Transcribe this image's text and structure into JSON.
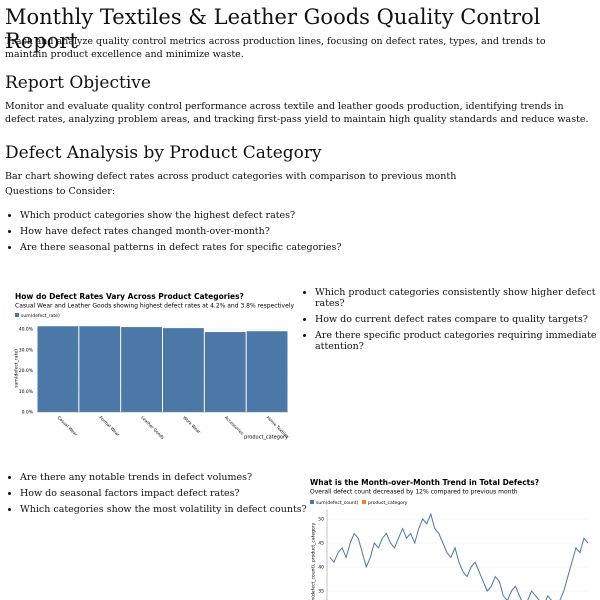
{
  "header": {
    "title": "Monthly Textiles & Leather Goods Quality Control Report",
    "description": "Track and analyze quality control metrics across production lines, focusing on defect rates, types, and trends to maintain product excellence and minimize waste."
  },
  "objective": {
    "heading": "Report Objective",
    "text": "Monitor and evaluate quality control performance across textile and leather goods production, identifying trends in defect rates, analyzing problem areas, and tracking first-pass yield to maintain high quality standards and reduce waste."
  },
  "section": {
    "heading": "Defect Analysis by Product Category",
    "description": "Bar chart showing defect rates across product categories with comparison to previous month",
    "questions_label": "Questions to Consider:",
    "questions": [
      "Which product categories show the highest defect rates?",
      "How have defect rates changed month-over-month?",
      "Are there seasonal patterns in defect rates for specific categories?"
    ],
    "side_questions": [
      "Which product categories consistently show higher defect rates?",
      "How do current defect rates compare to quality targets?",
      "Are there specific product categories requiring immediate attention?"
    ],
    "trend_questions": [
      "Are there any notable trends in defect volumes?",
      "How do seasonal factors impact defect rates?",
      "Which categories show the most volatility in defect counts?"
    ]
  },
  "bar_chart": {
    "type": "bar",
    "title": "How do Defect Rates Vary Across Product Categories?",
    "subtitle": "Casual Wear and Leather Goods showing highest defect rates at 4.2% and 3.8% respectively",
    "y_label": "sum(defect_rate)",
    "x_label": "product_category",
    "categories": [
      "Casual Wear",
      "Formal Wear",
      "Leather Goods",
      "Work Wear",
      "Accessories",
      "Home Textiles"
    ],
    "series": [
      {
        "name": "sum(defect_rate)",
        "color": "#4c78a8",
        "values": [
          41.4,
          41.4,
          41,
          40.5,
          38.6,
          39
        ]
      }
    ],
    "ylim": [
      0,
      42
    ],
    "yticks": [
      {
        "value": 0,
        "label": "0.0%"
      },
      {
        "value": 10,
        "label": "10.0%"
      },
      {
        "value": 20,
        "label": "20.0%"
      },
      {
        "value": 30,
        "label": "30.0%"
      },
      {
        "value": 40,
        "label": "40.0%"
      }
    ]
  },
  "line_chart": {
    "type": "line",
    "title": "What is the Month-over-Month Trend in Total Defects?",
    "subtitle": "Overall defect count decreased by 12% compared to previous month",
    "y_label": "sum(defect_count), product_category",
    "series": [
      {
        "name": "sum(defect_count)",
        "color": "#4c78a8",
        "values": [
          42,
          41,
          43,
          44,
          42,
          45,
          47,
          46,
          43,
          40,
          42,
          45,
          44,
          46,
          47,
          45,
          44,
          46,
          48,
          46,
          47,
          45,
          48,
          50,
          49,
          51,
          48,
          47,
          45,
          43,
          42,
          44,
          41,
          39,
          38,
          40,
          41,
          39,
          37,
          35,
          36,
          38,
          37,
          34,
          33,
          35,
          36,
          34,
          32,
          33,
          35,
          34,
          33,
          32,
          34,
          33,
          31,
          33,
          35,
          38,
          41,
          44,
          43,
          46,
          45
        ]
      },
      {
        "name": "product_category",
        "color": "#f58518",
        "values": []
      }
    ],
    "ylim": [
      32,
      52
    ],
    "yticks": [
      35,
      40,
      45,
      50
    ]
  }
}
